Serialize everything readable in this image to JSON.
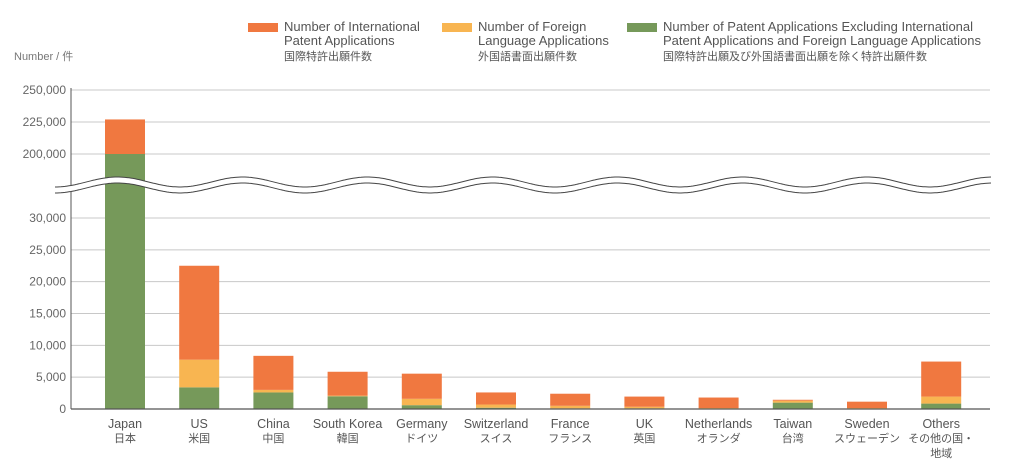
{
  "chart_data": {
    "type": "bar",
    "stacked": true,
    "ylabel": "Number / 件",
    "axis_break": [
      30000,
      200000
    ],
    "lower_ticks": [
      "0",
      "5,000",
      "10,000",
      "15,000",
      "20,000",
      "25,000",
      "30,000"
    ],
    "upper_ticks": [
      "200,000",
      "225,000",
      "250,000"
    ],
    "categories": [
      {
        "en": "Japan",
        "jp": "日本"
      },
      {
        "en": "US",
        "jp": "米国"
      },
      {
        "en": "China",
        "jp": "中国"
      },
      {
        "en": "South Korea",
        "jp": "韓国"
      },
      {
        "en": "Germany",
        "jp": "ドイツ"
      },
      {
        "en": "Switzerland",
        "jp": "スイス"
      },
      {
        "en": "France",
        "jp": "フランス"
      },
      {
        "en": "UK",
        "jp": "英国"
      },
      {
        "en": "Netherlands",
        "jp": "オランダ"
      },
      {
        "en": "Taiwan",
        "jp": "台湾"
      },
      {
        "en": "Sweden",
        "jp": "スウェーデン"
      },
      {
        "en": "Others",
        "jp": "その他の国・",
        "jp2": "地域"
      }
    ],
    "series": [
      {
        "name": "Number of Patent Applications Excluding International Patent Applications and Foreign Language Applications",
        "name_l1": "Number of Patent Applications Excluding International",
        "name_l2": "Patent Applications and Foreign Language Applications",
        "name_jp": "国際特許出願及び外国語書面出願を除く特許出願件数",
        "color": "#76995a",
        "values": [
          200000,
          3400,
          2600,
          2000,
          600,
          200,
          100,
          100,
          50,
          1000,
          50,
          850
        ]
      },
      {
        "name": "Number of Foreign Language Applications",
        "name_l1": "Number of Foreign",
        "name_l2": "Language Applications",
        "name_jp": "外国語書面出願件数",
        "color": "#f8b551",
        "values": [
          0,
          4350,
          400,
          100,
          1000,
          500,
          400,
          250,
          100,
          300,
          100,
          1100
        ]
      },
      {
        "name": "Number of International Patent Applications",
        "name_l1": "Number of International",
        "name_l2": "Patent Applications",
        "name_jp": "国際特許出願件数",
        "color": "#f07840",
        "values": [
          27000,
          14750,
          5350,
          3750,
          3950,
          1900,
          1900,
          1600,
          1650,
          150,
          1000,
          5500
        ]
      }
    ]
  }
}
